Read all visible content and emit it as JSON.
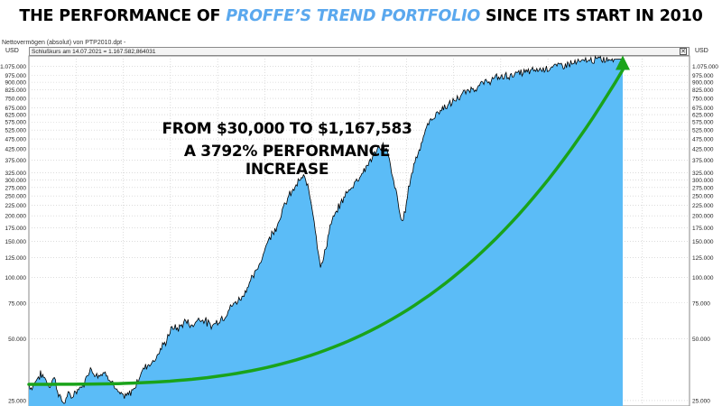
{
  "headline": {
    "prefix": "THE PERFORMANCE OF ",
    "accent": "PROFFE’S TREND PORTFOLIO",
    "suffix": " SINCE ITS START IN 2010"
  },
  "window": {
    "title": "Nettovermögen (absolut) von PTP2010.dpt -",
    "currency_left": "USD",
    "currency_right": "USD",
    "info": "Schlußkurs am 14.07.2021 = 1.167.582,864031",
    "close_symbol": "✕"
  },
  "annotation": {
    "line1": "FROM $30,000 TO $1,167,583",
    "line2": "A 3792% PERFORMANCE INCREASE"
  },
  "colors": {
    "area": "#5bbcf7",
    "line": "#000000",
    "trend": "#1aa31a",
    "grid": "#c8c8c8",
    "accent_text": "#5aa8ee"
  },
  "chart_data": {
    "type": "area",
    "scale": "log",
    "ylim": [
      23500,
      1210000
    ],
    "yticks": [
      25000,
      50000,
      75000,
      100000,
      125000,
      150000,
      175000,
      200000,
      225000,
      250000,
      275000,
      300000,
      325000,
      375000,
      425000,
      475000,
      525000,
      575000,
      625000,
      675000,
      750000,
      825000,
      900000,
      975000,
      1075000
    ],
    "ytick_labels": [
      "25.000",
      "50.000",
      "75.000",
      "100.000",
      "125.000",
      "150.000",
      "175.000",
      "200.000",
      "225.000",
      "250.000",
      "275.000",
      "300.000",
      "325.000",
      "375.000",
      "425.000",
      "475.000",
      "525.000",
      "575.000",
      "625.000",
      "675.000",
      "750.000",
      "825.000",
      "900.000",
      "975.000",
      "1.075.000"
    ],
    "x": [
      0,
      0.005,
      0.012,
      0.02,
      0.028,
      0.035,
      0.042,
      0.05,
      0.058,
      0.065,
      0.072,
      0.08,
      0.088,
      0.095,
      0.102,
      0.11,
      0.118,
      0.125,
      0.132,
      0.14,
      0.148,
      0.155,
      0.162,
      0.17,
      0.178,
      0.185,
      0.192,
      0.2,
      0.208,
      0.215,
      0.222,
      0.23,
      0.238,
      0.245,
      0.252,
      0.26,
      0.268,
      0.275,
      0.282,
      0.29,
      0.298,
      0.305,
      0.312,
      0.32,
      0.328,
      0.335,
      0.342,
      0.35,
      0.358,
      0.365,
      0.372,
      0.38,
      0.388,
      0.395,
      0.402,
      0.41,
      0.418,
      0.425,
      0.432,
      0.44,
      0.448,
      0.455,
      0.462,
      0.47,
      0.478,
      0.485,
      0.492,
      0.5,
      0.508,
      0.515,
      0.522,
      0.53,
      0.538,
      0.545,
      0.552,
      0.56,
      0.568,
      0.575,
      0.582,
      0.59,
      0.598,
      0.605,
      0.612,
      0.62,
      0.628,
      0.635,
      0.642,
      0.65,
      0.658,
      0.665,
      0.672,
      0.68,
      0.688,
      0.695,
      0.702,
      0.71,
      0.718,
      0.725,
      0.732,
      0.74,
      0.748,
      0.755,
      0.762,
      0.77,
      0.778,
      0.785,
      0.792,
      0.8,
      0.808,
      0.815,
      0.822,
      0.83,
      0.838,
      0.845,
      0.852,
      0.86,
      0.868,
      0.875,
      0.882,
      0.89,
      0.898,
      0.905,
      0.912,
      0.92,
      0.928,
      0.935,
      0.942,
      0.95,
      0.958,
      0.965,
      0.972,
      0.98,
      0.988,
      0.995,
      1.0
    ],
    "values": [
      30000,
      28500,
      31500,
      33500,
      32000,
      29000,
      33000,
      27000,
      24000,
      26500,
      26000,
      28000,
      29000,
      31000,
      36000,
      34000,
      33500,
      34000,
      33500,
      31000,
      27500,
      26500,
      26000,
      27000,
      29000,
      32000,
      35500,
      37500,
      38500,
      41000,
      44500,
      48000,
      55000,
      57000,
      56000,
      60000,
      61000,
      57000,
      62000,
      63000,
      61000,
      58000,
      59000,
      62000,
      64000,
      68000,
      73000,
      76000,
      80000,
      86000,
      95000,
      103000,
      115000,
      132000,
      150000,
      165000,
      180000,
      205000,
      230000,
      255000,
      275000,
      295000,
      310000,
      280000,
      215000,
      150000,
      110000,
      140000,
      180000,
      200000,
      220000,
      245000,
      265000,
      280000,
      300000,
      320000,
      345000,
      375000,
      400000,
      430000,
      445000,
      400000,
      310000,
      250000,
      180000,
      225000,
      300000,
      370000,
      430000,
      490000,
      560000,
      600000,
      640000,
      660000,
      690000,
      700000,
      740000,
      760000,
      790000,
      820000,
      840000,
      850000,
      880000,
      900000,
      920000,
      940000,
      950000,
      960000,
      970000,
      980000,
      990000,
      1000000,
      1010000,
      1020000,
      1030000,
      1040000,
      1050000,
      1060000,
      1070000,
      1080000,
      1090000,
      1100000,
      1110000,
      1120000,
      1130000,
      1140000,
      1150000,
      1155000,
      1160000,
      1163000,
      1165000,
      1166000,
      1167000,
      1167583,
      1167583
    ],
    "trend_start": 30000,
    "trend_end": 1167583
  }
}
